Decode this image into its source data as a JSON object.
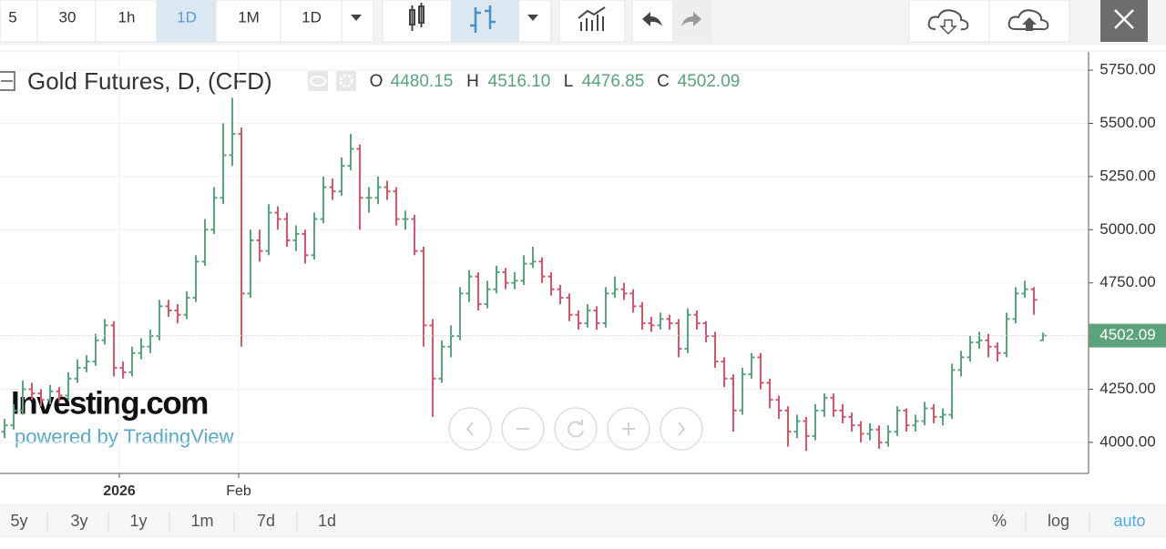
{
  "toolbar": {
    "intervals": [
      "5",
      "30",
      "1h",
      "1D",
      "1M",
      "1D"
    ]
  },
  "range_bar": {
    "ranges": [
      "5y",
      "3y",
      "1y",
      "1m",
      "7d",
      "1d"
    ],
    "options": [
      "%",
      "log",
      "auto"
    ]
  },
  "watermark": {
    "brand": "Investing.com",
    "powered": "powered by TradingView"
  },
  "chart_data": {
    "type": "ohlc",
    "title": "Gold Futures, D, (CFD)",
    "legend_keys": [
      "O",
      "H",
      "L",
      "C"
    ],
    "legend_values": [
      "4480.15",
      "4516.10",
      "4476.85",
      "4502.09"
    ],
    "up_color": "#5ba37a",
    "down_color": "#d6566a",
    "xlim": [
      -0.5,
      119
    ],
    "xticks": [
      {
        "value": 12.6,
        "label": "2026"
      },
      {
        "value": 25.7,
        "label": "Feb"
      }
    ],
    "ylim": [
      3854,
      5836
    ],
    "yticks": [
      {
        "value": 4000,
        "label": "4000.00"
      },
      {
        "value": 4250,
        "label": "4250.00"
      },
      {
        "value": 4500,
        "label": "4500.00"
      },
      {
        "value": 4750,
        "label": "4750.00"
      },
      {
        "value": 5000,
        "label": "5000.00"
      },
      {
        "value": 5250,
        "label": "5250.00"
      },
      {
        "value": 5500,
        "label": "5500.00"
      },
      {
        "value": 5750,
        "label": "5750.00"
      }
    ],
    "grid": true,
    "open": [
      4050,
      4080,
      4150,
      4250,
      4230,
      4200,
      4240,
      4220,
      4300,
      4350,
      4380,
      4480,
      4550,
      4350,
      4330,
      4420,
      4450,
      4500,
      4640,
      4620,
      4600,
      4680,
      4850,
      5000,
      5150,
      5350,
      5450,
      4700,
      4950,
      4900,
      5080,
      5050,
      4950,
      4980,
      4880,
      5050,
      5200,
      5180,
      5300,
      5380,
      5150,
      5150,
      5200,
      5180,
      5050,
      5050,
      4900,
      4550,
      4300,
      4450,
      4500,
      4700,
      4780,
      4650,
      4720,
      4800,
      4750,
      4760,
      4840,
      4850,
      4780,
      4720,
      4680,
      4600,
      4560,
      4620,
      4560,
      4700,
      4720,
      4700,
      4640,
      4560,
      4550,
      4580,
      4560,
      4440,
      4600,
      4560,
      4500,
      4380,
      4300,
      4150,
      4320,
      4400,
      4280,
      4200,
      4150,
      4050,
      4100,
      4030,
      4150,
      4210,
      4150,
      4120,
      4080,
      4040,
      4060,
      4000,
      4050,
      4150,
      4080,
      4100,
      4160,
      4120,
      4130,
      4340,
      4400,
      4470,
      4480,
      4450,
      4420,
      4580,
      4700,
      4720,
      4480.15
    ],
    "high": [
      4110,
      4180,
      4290,
      4280,
      4250,
      4270,
      4260,
      4330,
      4390,
      4410,
      4510,
      4580,
      4570,
      4380,
      4450,
      4490,
      4530,
      4670,
      4670,
      4650,
      4710,
      4880,
      5050,
      5200,
      5500,
      5620,
      5480,
      5000,
      5000,
      5120,
      5110,
      5080,
      5020,
      5000,
      5080,
      5250,
      5240,
      5340,
      5450,
      5400,
      5200,
      5250,
      5230,
      5200,
      5090,
      5070,
      4920,
      4580,
      4480,
      4550,
      4730,
      4810,
      4800,
      4760,
      4830,
      4820,
      4800,
      4880,
      4920,
      4870,
      4800,
      4740,
      4700,
      4620,
      4650,
      4640,
      4730,
      4780,
      4750,
      4720,
      4660,
      4590,
      4610,
      4600,
      4580,
      4630,
      4620,
      4570,
      4520,
      4400,
      4320,
      4350,
      4420,
      4420,
      4300,
      4220,
      4170,
      4130,
      4120,
      4180,
      4230,
      4230,
      4180,
      4140,
      4100,
      4090,
      4080,
      4080,
      4170,
      4160,
      4130,
      4190,
      4180,
      4160,
      4370,
      4430,
      4500,
      4520,
      4510,
      4470,
      4610,
      4730,
      4760,
      4730,
      4516.1
    ],
    "low": [
      4020,
      4060,
      4130,
      4200,
      4170,
      4180,
      4190,
      4200,
      4280,
      4330,
      4360,
      4460,
      4310,
      4300,
      4310,
      4390,
      4420,
      4480,
      4590,
      4560,
      4580,
      4660,
      4830,
      4980,
      5120,
      5300,
      4450,
      4680,
      4850,
      4880,
      5000,
      4920,
      4900,
      4840,
      4860,
      5030,
      5140,
      5160,
      5280,
      5000,
      5080,
      5120,
      5140,
      5020,
      5000,
      4880,
      4450,
      4120,
      4280,
      4400,
      4480,
      4660,
      4620,
      4630,
      4700,
      4720,
      4720,
      4740,
      4820,
      4750,
      4690,
      4650,
      4570,
      4530,
      4540,
      4530,
      4540,
      4680,
      4670,
      4610,
      4530,
      4520,
      4530,
      4530,
      4400,
      4420,
      4530,
      4470,
      4350,
      4260,
      4050,
      4130,
      4300,
      4250,
      4160,
      4110,
      3980,
      4020,
      3960,
      4010,
      4120,
      4120,
      4090,
      4050,
      4000,
      4010,
      3970,
      3980,
      4030,
      4050,
      4050,
      4080,
      4090,
      4080,
      4110,
      4310,
      4380,
      4440,
      4400,
      4380,
      4400,
      4560,
      4680,
      4600,
      4476.85
    ],
    "close": [
      4080,
      4150,
      4250,
      4230,
      4200,
      4240,
      4220,
      4300,
      4350,
      4380,
      4480,
      4550,
      4350,
      4330,
      4420,
      4450,
      4500,
      4640,
      4620,
      4600,
      4680,
      4850,
      5000,
      5150,
      5350,
      5450,
      4700,
      4950,
      4900,
      5080,
      5050,
      4950,
      4980,
      4880,
      5050,
      5200,
      5180,
      5300,
      5380,
      5150,
      5150,
      5200,
      5180,
      5050,
      5050,
      4900,
      4550,
      4300,
      4450,
      4500,
      4700,
      4780,
      4650,
      4720,
      4800,
      4750,
      4760,
      4840,
      4850,
      4780,
      4720,
      4680,
      4600,
      4560,
      4620,
      4560,
      4700,
      4720,
      4700,
      4640,
      4560,
      4550,
      4580,
      4560,
      4440,
      4600,
      4560,
      4500,
      4380,
      4300,
      4150,
      4320,
      4400,
      4280,
      4200,
      4150,
      4050,
      4100,
      4030,
      4150,
      4210,
      4150,
      4120,
      4080,
      4040,
      4060,
      4000,
      4050,
      4150,
      4080,
      4100,
      4160,
      4120,
      4130,
      4340,
      4400,
      4470,
      4480,
      4450,
      4420,
      4580,
      4700,
      4720,
      4670,
      4502.09
    ]
  }
}
